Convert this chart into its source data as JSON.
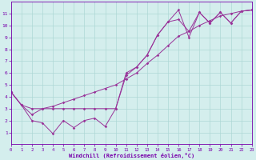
{
  "xlabel": "Windchill (Refroidissement éolien,°C)",
  "ylabel": "",
  "xlim": [
    0,
    23
  ],
  "ylim": [
    0,
    12
  ],
  "xticks": [
    0,
    1,
    2,
    3,
    4,
    5,
    6,
    7,
    8,
    9,
    10,
    11,
    12,
    13,
    14,
    15,
    16,
    17,
    18,
    19,
    20,
    21,
    22,
    23
  ],
  "yticks": [
    1,
    2,
    3,
    4,
    5,
    6,
    7,
    8,
    9,
    10,
    11
  ],
  "background_color": "#d4eeed",
  "grid_color": "#aed8d5",
  "line_color": "#993399",
  "line1_x": [
    0,
    1,
    2,
    3,
    4,
    5,
    6,
    7,
    8,
    9,
    10,
    11,
    12,
    13,
    14,
    15,
    16,
    17,
    18,
    19,
    20,
    21,
    22,
    23
  ],
  "line1_y": [
    4.4,
    3.3,
    2.0,
    1.8,
    0.9,
    2.0,
    1.4,
    2.0,
    2.2,
    1.5,
    3.0,
    5.8,
    6.5,
    7.5,
    9.2,
    10.3,
    11.3,
    9.0,
    11.1,
    10.2,
    11.1,
    10.2,
    11.2,
    11.3
  ],
  "line2_x": [
    0,
    1,
    2,
    3,
    4,
    5,
    6,
    7,
    8,
    9,
    10,
    11,
    12,
    13,
    14,
    15,
    16,
    17,
    18,
    19,
    20,
    21,
    22,
    23
  ],
  "line2_y": [
    4.4,
    3.3,
    3.0,
    3.0,
    3.0,
    3.0,
    3.0,
    3.0,
    3.0,
    3.0,
    3.0,
    6.0,
    6.5,
    7.5,
    9.2,
    10.3,
    10.5,
    9.5,
    11.1,
    10.2,
    11.1,
    10.2,
    11.2,
    11.3
  ],
  "line3_x": [
    0,
    1,
    2,
    3,
    4,
    5,
    6,
    7,
    8,
    9,
    10,
    11,
    12,
    13,
    14,
    15,
    16,
    17,
    18,
    19,
    20,
    21,
    22,
    23
  ],
  "line3_y": [
    4.4,
    3.3,
    2.5,
    3.0,
    3.2,
    3.5,
    3.8,
    4.1,
    4.4,
    4.7,
    5.0,
    5.5,
    6.0,
    6.8,
    7.5,
    8.3,
    9.1,
    9.5,
    10.0,
    10.4,
    10.8,
    11.0,
    11.2,
    11.3
  ]
}
